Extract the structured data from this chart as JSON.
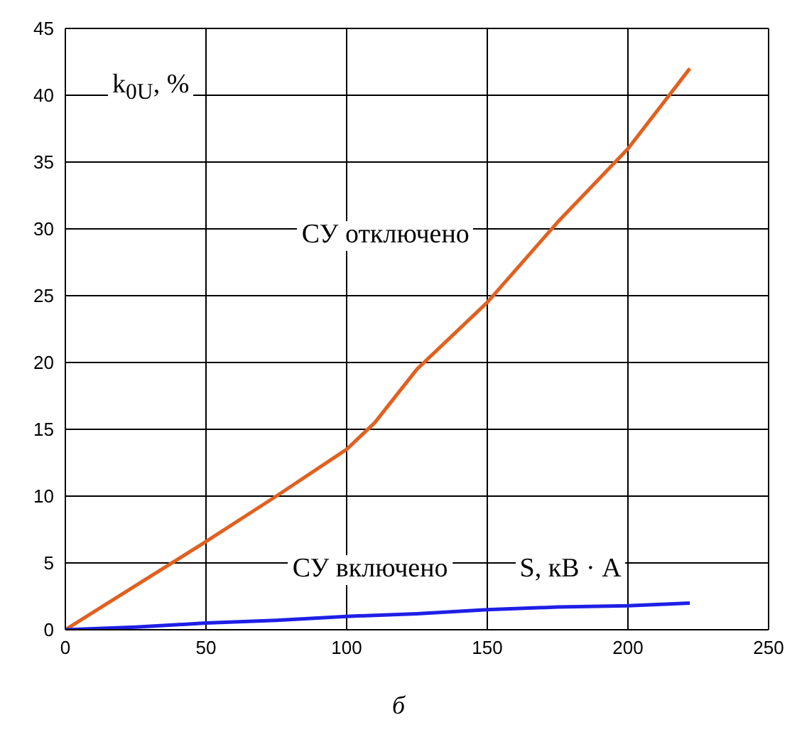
{
  "chart_data": {
    "type": "line",
    "xlabel": "S, кВ · А",
    "ylabel": "k$_{0U}$, %",
    "xlim": [
      0,
      250
    ],
    "ylim": [
      0,
      45
    ],
    "xticks": [
      0,
      50,
      100,
      150,
      200,
      250
    ],
    "yticks": [
      0,
      5,
      10,
      15,
      20,
      25,
      30,
      35,
      40,
      45
    ],
    "grid": true,
    "marker": "none",
    "line_style": "solid",
    "series": [
      {
        "name": "СУ отключено",
        "color": "#e2601e",
        "x": [
          0,
          25,
          50,
          75,
          100,
          110,
          125,
          150,
          175,
          200,
          222
        ],
        "values": [
          0,
          3.3,
          6.6,
          10,
          13.5,
          15.5,
          19.5,
          24.5,
          30.5,
          36,
          42
        ]
      },
      {
        "name": "СУ включено",
        "color": "#1f1fe6",
        "x": [
          0,
          25,
          50,
          75,
          100,
          125,
          150,
          175,
          200,
          222
        ],
        "values": [
          0,
          0.2,
          0.5,
          0.7,
          1,
          1.2,
          1.5,
          1.7,
          1.8,
          2
        ]
      }
    ],
    "annotations": [
      "б"
    ]
  }
}
